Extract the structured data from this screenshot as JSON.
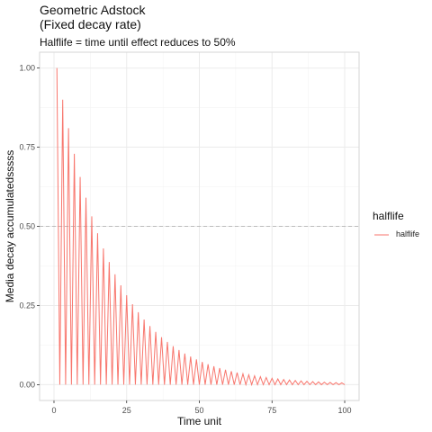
{
  "chart_data": {
    "type": "line",
    "title_line1": "Geometric Adstock",
    "title_line2": "(Fixed decay rate)",
    "subtitle": "Halflife = time until effect reduces to 50%",
    "xlabel": "Time unit",
    "ylabel": "Media decay accumulatedsssss",
    "xlim": [
      -4.95,
      104.95
    ],
    "ylim": [
      -0.05,
      1.05
    ],
    "x_ticks": [
      0,
      25,
      50,
      75,
      100
    ],
    "y_ticks": [
      0.0,
      0.25,
      0.5,
      0.75,
      1.0
    ],
    "x_tick_labels": [
      "0",
      "25",
      "50",
      "75",
      "100"
    ],
    "y_tick_labels": [
      "0.00",
      "0.25",
      "0.50",
      "0.75",
      "1.00"
    ],
    "reference_line": {
      "y": 0.5,
      "style": "dashed",
      "color": "#bdbdbd"
    },
    "grid": true,
    "legend": {
      "title": "halflife",
      "position": "right",
      "entries": [
        "halflife"
      ]
    },
    "series": [
      {
        "name": "halflife",
        "color": "#f8766d",
        "pattern": "decay values alternate with zero",
        "x_start": 1,
        "x_end": 100,
        "initial_value": 1.0,
        "decay_rate": 0.9
      }
    ]
  }
}
